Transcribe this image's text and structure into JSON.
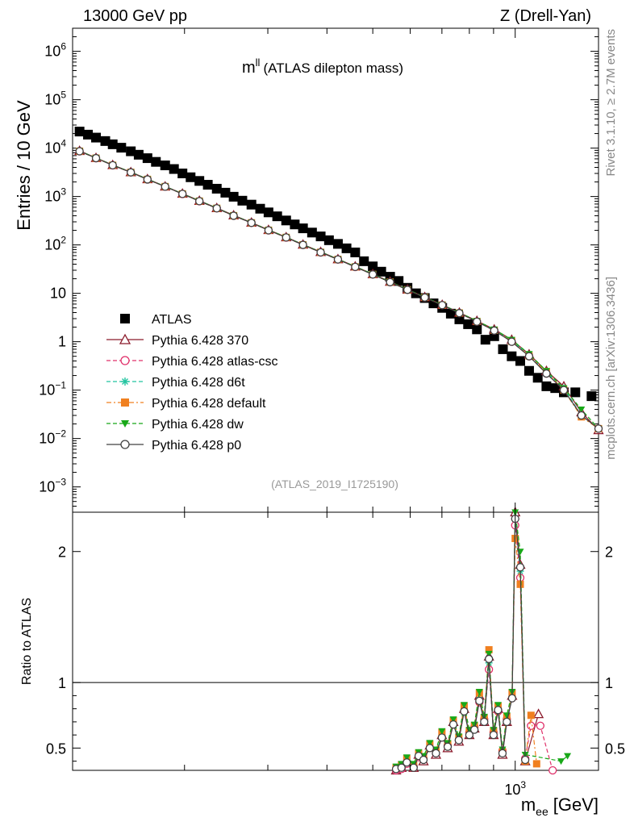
{
  "header": {
    "left_label": "13000 GeV pp",
    "right_label": "Z (Drell-Yan)"
  },
  "side": {
    "rivet_label": "Rivet 3.1.10, ≥ 2.7M events",
    "source_label": "mcplots.cern.ch [arXiv:1306.3436]"
  },
  "chart_data": [
    {
      "type": "scatter",
      "title": "mll (ATLAS dilepton mass)",
      "title_main": "m",
      "title_sup": "ll",
      "title_rest": "(ATLAS dilepton mass)",
      "ylabel": "Entries / 10 GeV",
      "xlabel": "mee [GeV]",
      "xlabel_main": "m",
      "xlabel_sub": "ee",
      "xlabel_unit": "[GeV]",
      "yscale": "log",
      "xscale": "log",
      "xlim": [
        116,
        1500
      ],
      "ylim": [
        0.0003,
        3000000
      ],
      "x_tick_labels": [
        "10^3"
      ],
      "y_tick_labels": [
        "10^-3",
        "10^-2",
        "10^-1",
        "1",
        "10",
        "10^2",
        "10^3",
        "10^4",
        "10^5",
        "10^6"
      ],
      "legend_position": "bottom-left",
      "watermark": "(ATLAS_2019_I1725190)",
      "series": [
        {
          "name": "ATLAS",
          "color": "#000000",
          "marker": "square",
          "x": [
            120,
            125,
            130,
            136,
            141,
            147,
            154,
            160,
            167,
            174,
            182,
            190,
            198,
            206,
            215,
            224,
            234,
            244,
            254,
            265,
            277,
            289,
            301,
            314,
            328,
            342,
            356,
            372,
            388,
            404,
            422,
            440,
            459,
            479,
            500,
            521,
            544,
            567,
            592,
            617,
            644,
            672,
            701,
            731,
            762,
            795,
            830,
            865,
            903,
            942,
            983,
            1025,
            1070,
            1116,
            1164,
            1215,
            1267,
            1340,
            1450
          ],
          "y": [
            22000,
            19000,
            16500,
            14000,
            12000,
            10200,
            8600,
            7300,
            6200,
            5200,
            4400,
            3700,
            3000,
            2500,
            2100,
            1750,
            1450,
            1200,
            990,
            820,
            680,
            560,
            470,
            390,
            320,
            265,
            220,
            180,
            150,
            125,
            105,
            85,
            70,
            46,
            36,
            28,
            22,
            18,
            13,
            10,
            8,
            6.2,
            5,
            3.8,
            2.9,
            2.3,
            1.8,
            1.1,
            1.3,
            0.7,
            0.5,
            0.4,
            0.25,
            0.18,
            0.12,
            0.11,
            0.09,
            0.09,
            0.075
          ]
        },
        {
          "name": "Pythia 6.428 370",
          "color": "#8b1a2b",
          "marker": "open-triangle",
          "line": "solid",
          "x": [
            120,
            130,
            141,
            154,
            167,
            182,
            198,
            215,
            234,
            254,
            277,
            301,
            328,
            356,
            388,
            422,
            459,
            500,
            544,
            592,
            644,
            701,
            762,
            830,
            903,
            983,
            1070,
            1164,
            1267,
            1380,
            1500
          ],
          "y": [
            8800,
            6300,
            4500,
            3200,
            2300,
            1620,
            1150,
            820,
            580,
            410,
            290,
            205,
            145,
            102,
            72,
            51,
            36,
            25,
            17.5,
            12,
            8.4,
            5.8,
            4,
            2.7,
            1.8,
            1.1,
            0.55,
            0.25,
            0.12,
            0.035,
            0.015
          ]
        },
        {
          "name": "Pythia 6.428 atlas-csc",
          "color": "#e0306a",
          "marker": "open-circle",
          "line": "dashed",
          "x": [
            120,
            130,
            141,
            154,
            167,
            182,
            198,
            215,
            234,
            254,
            277,
            301,
            328,
            356,
            388,
            422,
            459,
            500,
            544,
            592,
            644,
            701,
            762,
            830,
            903,
            983,
            1070,
            1164,
            1267,
            1380,
            1500
          ],
          "y": [
            8600,
            6200,
            4400,
            3150,
            2250,
            1600,
            1130,
            800,
            570,
            400,
            285,
            200,
            142,
            100,
            70,
            50,
            35,
            24.5,
            17,
            11.8,
            8.2,
            5.7,
            3.9,
            2.6,
            1.7,
            1.0,
            0.5,
            0.22,
            0.1,
            0.03,
            0.016
          ]
        },
        {
          "name": "Pythia 6.428 d6t",
          "color": "#22c4a0",
          "marker": "asterisk",
          "line": "dashed",
          "x": [
            120,
            130,
            141,
            154,
            167,
            182,
            198,
            215,
            234,
            254,
            277,
            301,
            328,
            356,
            388,
            422,
            459,
            500,
            544,
            592,
            644,
            701,
            762,
            830,
            903,
            983,
            1070,
            1164,
            1267,
            1380,
            1500
          ],
          "y": [
            8700,
            6250,
            4450,
            3180,
            2280,
            1610,
            1140,
            810,
            575,
            405,
            288,
            203,
            144,
            101,
            71,
            50.5,
            35.5,
            24.8,
            17.2,
            11.9,
            8.3,
            5.75,
            3.95,
            2.65,
            1.75,
            1.05,
            0.52,
            0.23,
            0.11,
            0.03,
            0.016
          ]
        },
        {
          "name": "Pythia 6.428 default",
          "color": "#f08020",
          "marker": "square",
          "line": "dashdot",
          "x": [
            120,
            130,
            141,
            154,
            167,
            182,
            198,
            215,
            234,
            254,
            277,
            301,
            328,
            356,
            388,
            422,
            459,
            500,
            544,
            592,
            644,
            701,
            762,
            830,
            903,
            983,
            1070,
            1164,
            1267,
            1380,
            1500
          ],
          "y": [
            8650,
            6220,
            4430,
            3160,
            2260,
            1605,
            1135,
            805,
            572,
            402,
            286,
            201,
            143,
            100.5,
            70.5,
            50.2,
            35.2,
            24.6,
            17.1,
            11.85,
            8.25,
            5.72,
            3.92,
            2.62,
            1.72,
            1.02,
            0.51,
            0.24,
            0.1,
            0.028,
            0.016
          ]
        },
        {
          "name": "Pythia 6.428 dw",
          "color": "#18a818",
          "marker": "filled-down-triangle",
          "line": "dashed",
          "x": [
            120,
            130,
            141,
            154,
            167,
            182,
            198,
            215,
            234,
            254,
            277,
            301,
            328,
            356,
            388,
            422,
            459,
            500,
            544,
            592,
            644,
            701,
            762,
            830,
            903,
            983,
            1070,
            1164,
            1267,
            1380,
            1500
          ],
          "y": [
            8750,
            6280,
            4470,
            3190,
            2290,
            1615,
            1145,
            815,
            578,
            407,
            289,
            204,
            145,
            101.5,
            71.5,
            50.8,
            35.8,
            25,
            17.3,
            12,
            8.35,
            5.8,
            4,
            2.7,
            1.8,
            1.1,
            0.56,
            0.25,
            0.11,
            0.04,
            0.016
          ]
        },
        {
          "name": "Pythia 6.428 p0",
          "color": "#404040",
          "marker": "open-circle",
          "line": "solid",
          "x": [
            120,
            130,
            141,
            154,
            167,
            182,
            198,
            215,
            234,
            254,
            277,
            301,
            328,
            356,
            388,
            422,
            459,
            500,
            544,
            592,
            644,
            701,
            762,
            830,
            903,
            983,
            1070,
            1164,
            1267,
            1380,
            1500
          ],
          "y": [
            8620,
            6210,
            4420,
            3155,
            2255,
            1602,
            1132,
            802,
            571,
            401,
            285.5,
            200.5,
            142.5,
            100.2,
            70.2,
            50.1,
            35.1,
            24.5,
            17,
            11.8,
            8.2,
            5.7,
            3.9,
            2.6,
            1.7,
            1.0,
            0.5,
            0.22,
            0.1,
            0.03,
            0.016
          ]
        }
      ]
    },
    {
      "type": "line",
      "title": "",
      "ylabel": "Ratio to ATLAS",
      "xlabel": "mee [GeV]",
      "xscale": "log",
      "xlim": [
        116,
        1500
      ],
      "ylim": [
        0.33,
        2.3
      ],
      "y_tick_labels": [
        "0.5",
        "1",
        "2"
      ],
      "x_tick_labels": [
        "10^3"
      ],
      "reference_line": 1,
      "series": [
        {
          "name": "Pythia 6.428 370",
          "color": "#8b1a2b",
          "marker": "open-triangle",
          "line": "solid",
          "x": [
            560,
            575,
            590,
            610,
            625,
            640,
            660,
            680,
            700,
            720,
            740,
            760,
            780,
            800,
            820,
            840,
            860,
            880,
            900,
            920,
            940,
            960,
            985,
            1000,
            1025,
            1050,
            1120
          ],
          "y": [
            0.33,
            0.35,
            0.4,
            0.35,
            0.45,
            0.4,
            0.52,
            0.45,
            0.6,
            0.5,
            0.7,
            0.55,
            0.8,
            0.6,
            0.65,
            0.9,
            0.7,
            1.2,
            0.6,
            0.8,
            0.45,
            0.7,
            0.9,
            2.3,
            1.9,
            0.4,
            0.76
          ]
        },
        {
          "name": "Pythia 6.428 atlas-csc",
          "color": "#e0306a",
          "marker": "open-circle",
          "line": "dashed",
          "x": [
            560,
            575,
            590,
            610,
            625,
            640,
            660,
            680,
            700,
            720,
            740,
            760,
            780,
            800,
            820,
            840,
            860,
            880,
            900,
            920,
            940,
            960,
            985,
            1000,
            1025,
            1050,
            1080,
            1130,
            1200
          ],
          "y": [
            0.33,
            0.34,
            0.38,
            0.36,
            0.43,
            0.42,
            0.5,
            0.46,
            0.58,
            0.52,
            0.68,
            0.56,
            0.78,
            0.62,
            0.66,
            0.85,
            0.72,
            1.1,
            0.62,
            0.78,
            0.48,
            0.72,
            0.88,
            2.2,
            1.8,
            0.42,
            0.67,
            0.67,
            0.33
          ]
        },
        {
          "name": "Pythia 6.428 d6t",
          "color": "#22c4a0",
          "marker": "asterisk",
          "line": "dashed",
          "x": [
            560,
            575,
            590,
            610,
            625,
            640,
            660,
            680,
            700,
            720,
            740,
            760,
            780,
            800,
            820,
            840,
            860,
            880,
            900,
            920,
            940,
            960,
            985,
            1000,
            1025,
            1050
          ],
          "y": [
            0.34,
            0.36,
            0.41,
            0.36,
            0.44,
            0.41,
            0.51,
            0.47,
            0.59,
            0.51,
            0.69,
            0.57,
            0.79,
            0.61,
            0.64,
            0.87,
            0.71,
            1.15,
            0.61,
            0.79,
            0.46,
            0.71,
            0.89,
            2.25,
            1.85,
            0.41
          ]
        },
        {
          "name": "Pythia 6.428 default",
          "color": "#f08020",
          "marker": "square",
          "line": "dashdot",
          "x": [
            560,
            575,
            590,
            610,
            625,
            640,
            660,
            680,
            700,
            720,
            740,
            760,
            780,
            800,
            820,
            840,
            860,
            880,
            900,
            920,
            940,
            960,
            985,
            1000,
            1025,
            1050,
            1080,
            1110
          ],
          "y": [
            0.35,
            0.37,
            0.42,
            0.37,
            0.46,
            0.43,
            0.53,
            0.48,
            0.62,
            0.53,
            0.71,
            0.58,
            0.82,
            0.63,
            0.67,
            0.92,
            0.73,
            1.25,
            0.63,
            0.82,
            0.47,
            0.74,
            0.92,
            2.1,
            1.75,
            0.4,
            0.75,
            0.38
          ]
        },
        {
          "name": "Pythia 6.428 dw",
          "color": "#18a818",
          "marker": "filled-down-triangle",
          "line": "dashed",
          "x": [
            560,
            575,
            590,
            610,
            625,
            640,
            660,
            680,
            700,
            720,
            740,
            760,
            780,
            800,
            820,
            840,
            860,
            880,
            900,
            920,
            940,
            960,
            985,
            1000,
            1025,
            1050,
            1250,
            1290
          ],
          "y": [
            0.36,
            0.38,
            0.43,
            0.38,
            0.47,
            0.44,
            0.54,
            0.49,
            0.63,
            0.54,
            0.72,
            0.59,
            0.83,
            0.64,
            0.68,
            0.93,
            0.74,
            1.22,
            0.64,
            0.83,
            0.49,
            0.75,
            0.93,
            2.3,
            2.0,
            0.45,
            0.4,
            0.44
          ]
        },
        {
          "name": "Pythia 6.428 p0",
          "color": "#404040",
          "marker": "open-circle",
          "line": "solid",
          "x": [
            560,
            575,
            590,
            610,
            625,
            640,
            660,
            680,
            700,
            720,
            740,
            760,
            780,
            800,
            820,
            840,
            860,
            880,
            900,
            920,
            940,
            960,
            985,
            1000,
            1025,
            1050
          ],
          "y": [
            0.34,
            0.35,
            0.39,
            0.35,
            0.44,
            0.41,
            0.5,
            0.46,
            0.58,
            0.51,
            0.68,
            0.56,
            0.78,
            0.6,
            0.64,
            0.86,
            0.7,
            1.18,
            0.6,
            0.79,
            0.46,
            0.7,
            0.88,
            2.25,
            1.88,
            0.41
          ]
        }
      ]
    }
  ]
}
